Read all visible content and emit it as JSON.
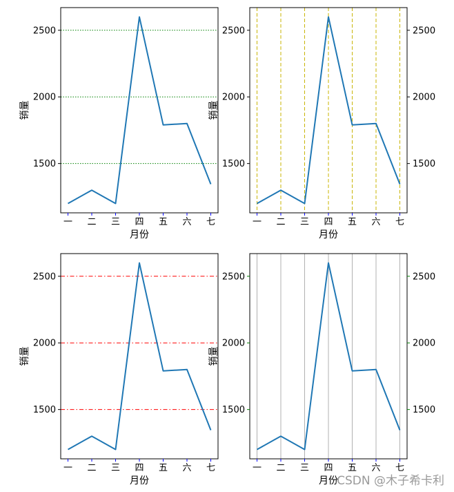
{
  "watermark": "CSDN @木子希卡利",
  "chart_data": [
    {
      "type": "line",
      "panel": "top-left",
      "categories": [
        "一",
        "二",
        "三",
        "四",
        "五",
        "六",
        "七"
      ],
      "values": [
        1200,
        1300,
        1200,
        2600,
        1790,
        1800,
        1345
      ],
      "xlabel": "月份",
      "ylabel": "销量",
      "yticks": [
        1500,
        2000,
        2500
      ],
      "ylim": [
        1130,
        2670
      ],
      "line_color": "#1f77b4",
      "grid": {
        "axis": "y",
        "color": "#008000",
        "style": "dotted"
      },
      "xtick_color": "#0000ff",
      "ytick_color": "#000000",
      "right_ticks": false
    },
    {
      "type": "line",
      "panel": "top-right",
      "categories": [
        "一",
        "二",
        "三",
        "四",
        "五",
        "六",
        "七"
      ],
      "values": [
        1200,
        1300,
        1200,
        2600,
        1790,
        1800,
        1345
      ],
      "xlabel": "月份",
      "ylabel": "销量",
      "yticks": [
        1500,
        2000,
        2500
      ],
      "ylim": [
        1130,
        2670
      ],
      "line_color": "#1f77b4",
      "grid": {
        "axis": "x",
        "color": "#c8b400",
        "style": "dashed"
      },
      "xtick_color": "#0000ff",
      "ytick_color": "#000000",
      "right_ticks": true
    },
    {
      "type": "line",
      "panel": "bottom-left",
      "categories": [
        "一",
        "二",
        "三",
        "四",
        "五",
        "六",
        "七"
      ],
      "values": [
        1200,
        1300,
        1200,
        2600,
        1790,
        1800,
        1345
      ],
      "xlabel": "月份",
      "ylabel": "销量",
      "yticks": [
        1500,
        2000,
        2500
      ],
      "ylim": [
        1130,
        2670
      ],
      "line_color": "#1f77b4",
      "grid": {
        "axis": "y",
        "color": "#ff0000",
        "style": "dashdot"
      },
      "xtick_color": "#0000ff",
      "ytick_color": "#000000",
      "right_ticks": false
    },
    {
      "type": "line",
      "panel": "bottom-right",
      "categories": [
        "一",
        "二",
        "三",
        "四",
        "五",
        "六",
        "七"
      ],
      "values": [
        1200,
        1300,
        1200,
        2600,
        1790,
        1800,
        1345
      ],
      "xlabel": "月份",
      "ylabel": "销量",
      "yticks": [
        1500,
        2000,
        2500
      ],
      "ylim": [
        1130,
        2670
      ],
      "line_color": "#1f77b4",
      "grid": {
        "axis": "x",
        "color": "#b0b0b0",
        "style": "solid"
      },
      "xtick_color": "#0000ff",
      "ytick_color": "#008000",
      "right_ticks": true
    }
  ]
}
